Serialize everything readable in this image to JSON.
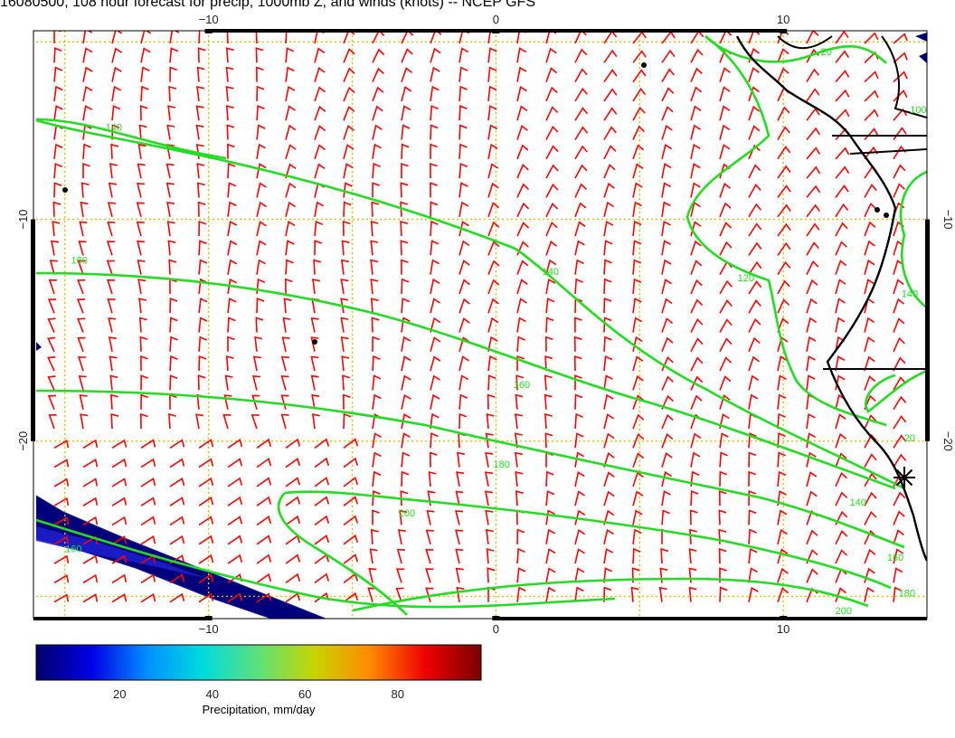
{
  "title": "16080500, 108 hour forecast for precip, 1000mb Z, and winds (knots) -- NCEP GFS",
  "map": {
    "lon_range": [
      -16,
      15
    ],
    "lat_range": [
      -28,
      -1.5
    ],
    "x_ticks": [
      {
        "label": "−10",
        "value": -10
      },
      {
        "label": "0",
        "value": 0
      },
      {
        "label": "10",
        "value": 10
      }
    ],
    "y_ticks": [
      {
        "label": "−10",
        "value": -10
      },
      {
        "label": "−20",
        "value": -20
      }
    ],
    "gridline_color": "#d4c400",
    "wind_barb_color": "#ff0000",
    "contour_color": "#22dd22",
    "coast_color": "#000000",
    "contour_labels": [
      {
        "text": "140",
        "lon": -13.3,
        "lat": -6.0
      },
      {
        "text": "160",
        "lon": -14.5,
        "lat": -12.0
      },
      {
        "text": "140",
        "lon": 1.9,
        "lat": -12.5
      },
      {
        "text": "120",
        "lon": 8.7,
        "lat": -12.8
      },
      {
        "text": "140",
        "lon": 14.4,
        "lat": -13.5
      },
      {
        "text": "160",
        "lon": 0.9,
        "lat": -17.6
      },
      {
        "text": "180",
        "lon": 0.2,
        "lat": -21.2
      },
      {
        "text": "200",
        "lon": -3.1,
        "lat": -23.4
      },
      {
        "text": "160",
        "lon": -14.7,
        "lat": -25.0
      },
      {
        "text": "140",
        "lon": 12.6,
        "lat": -22.9
      },
      {
        "text": "160",
        "lon": 13.9,
        "lat": -25.4
      },
      {
        "text": "180",
        "lon": 14.3,
        "lat": -27.0
      },
      {
        "text": "200",
        "lon": 12.1,
        "lat": -27.8
      },
      {
        "text": "20",
        "lon": 14.4,
        "lat": -20.0
      },
      {
        "text": "20",
        "lon": 11.5,
        "lat": -2.6
      },
      {
        "text": "100",
        "lon": 14.7,
        "lat": -5.2
      }
    ]
  },
  "colorbar": {
    "label": "Precipitation, mm/day",
    "range": [
      2,
      98
    ],
    "ticks": [
      {
        "label": "20",
        "value": 20
      },
      {
        "label": "40",
        "value": 40
      },
      {
        "label": "60",
        "value": 60
      },
      {
        "label": "80",
        "value": 80
      }
    ],
    "stops": [
      "#00006a",
      "#0000e6",
      "#0090ff",
      "#00dcdc",
      "#5ee07a",
      "#c8d400",
      "#ff8a00",
      "#ee0000",
      "#7a0000"
    ]
  }
}
